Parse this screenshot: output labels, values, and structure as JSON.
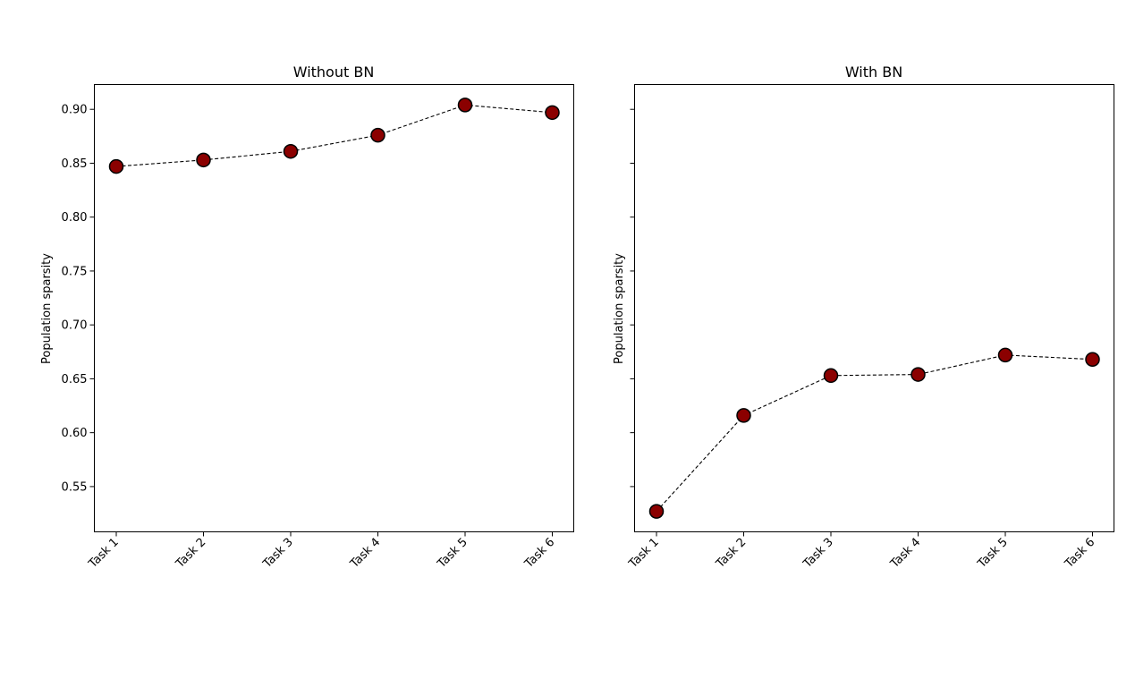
{
  "chart_data": [
    {
      "type": "line",
      "title": "Without BN",
      "xlabel": "",
      "ylabel": "Population sparsity",
      "categories": [
        "Task 1",
        "Task 2",
        "Task 3",
        "Task 4",
        "Task 5",
        "Task 6"
      ],
      "values": [
        0.847,
        0.853,
        0.861,
        0.876,
        0.904,
        0.897
      ],
      "ylim": [
        0.508,
        0.923
      ],
      "yticks": [
        "0.55",
        "0.60",
        "0.65",
        "0.70",
        "0.75",
        "0.80",
        "0.85",
        "0.90"
      ],
      "line_style": "dashed",
      "marker_color": "#8b0000"
    },
    {
      "type": "line",
      "title": "With BN",
      "xlabel": "",
      "ylabel": "Population sparsity",
      "categories": [
        "Task 1",
        "Task 2",
        "Task 3",
        "Task 4",
        "Task 5",
        "Task 6"
      ],
      "values": [
        0.527,
        0.616,
        0.653,
        0.654,
        0.672,
        0.668
      ],
      "ylim": [
        0.508,
        0.923
      ],
      "yticks": [],
      "shared_y": true,
      "line_style": "dashed",
      "marker_color": "#8b0000"
    }
  ]
}
